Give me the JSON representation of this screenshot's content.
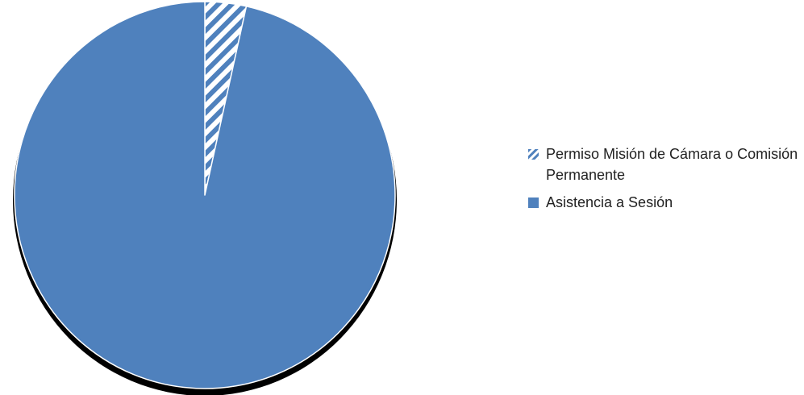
{
  "chart_data": {
    "type": "pie",
    "title": "",
    "start_angle_deg": 0,
    "direction": "clockwise",
    "series": [
      {
        "name": "Permiso Misión de Cámara o Comisión Permanente",
        "value": 3.5,
        "fill": "hatched",
        "color": "#4F81BD"
      },
      {
        "name": "Asistencia a Sesión",
        "value": 96.5,
        "fill": "solid",
        "color": "#4F81BD"
      }
    ],
    "legend": {
      "position": "right"
    },
    "slice_border_color": "#FFFFFF",
    "outline_color": "#000000"
  }
}
